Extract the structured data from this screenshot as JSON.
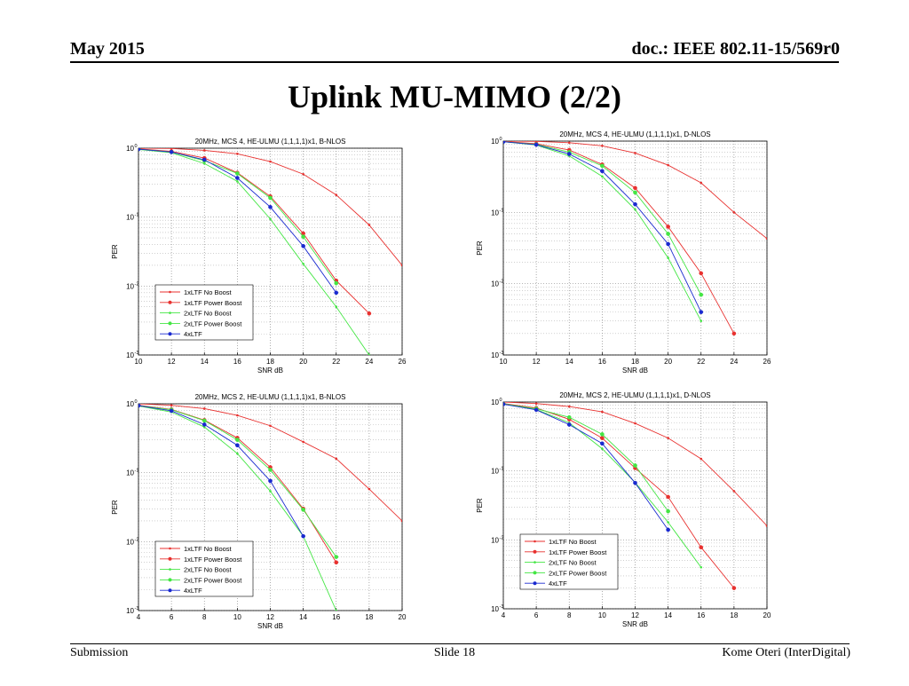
{
  "header": {
    "date": "May 2015",
    "doc": "doc.: IEEE 802.11-15/569r0"
  },
  "title": "Uplink MU-MIMO (2/2)",
  "footer": {
    "left": "Submission",
    "center": "Slide 18",
    "right": "Kome Oteri (InterDigital)"
  },
  "series_colors": {
    "1xLTF No Boost": "#e8312f",
    "1xLTF Power Boost": "#e8312f",
    "2xLTF No Boost": "#44e644",
    "2xLTF Power Boost": "#44e644",
    "4xLTF": "#1a2ad0"
  },
  "chart_data": [
    {
      "type": "line",
      "title": "20MHz, MCS 4, HE-ULMU (1,1,1,1)x1, B-NLOS",
      "xlabel": "SNR dB",
      "ylabel": "PER",
      "xlim": [
        10,
        26
      ],
      "ylim": [
        0.001,
        1
      ],
      "yscale": "log",
      "xticks": [
        "10",
        "12",
        "14",
        "16",
        "18",
        "20",
        "22",
        "24",
        "26"
      ],
      "yticks": [
        "10",
        "10",
        "10",
        "10"
      ],
      "ytick_exps": [
        "0",
        "-1",
        "-2",
        "-3"
      ],
      "grid": true,
      "legend": "bottom-left",
      "series": [
        {
          "name": "1xLTF No Boost",
          "x": [
            10,
            12,
            14,
            16,
            18,
            20,
            22,
            24,
            26
          ],
          "y": [
            1.0,
            0.99,
            0.93,
            0.83,
            0.64,
            0.42,
            0.21,
            0.077,
            0.02
          ]
        },
        {
          "name": "1xLTF Power Boost",
          "x": [
            10,
            12,
            14,
            16,
            18,
            20,
            22,
            24
          ],
          "y": [
            0.98,
            0.9,
            0.72,
            0.44,
            0.2,
            0.058,
            0.012,
            0.004
          ]
        },
        {
          "name": "2xLTF No Boost",
          "x": [
            10,
            12,
            14,
            16,
            18,
            20,
            22,
            24
          ],
          "y": [
            0.96,
            0.86,
            0.6,
            0.33,
            0.094,
            0.021,
            0.005,
            0.001
          ]
        },
        {
          "name": "2xLTF Power Boost",
          "x": [
            10,
            12,
            14,
            16,
            18,
            20,
            22
          ],
          "y": [
            0.97,
            0.88,
            0.66,
            0.43,
            0.19,
            0.052,
            0.011
          ]
        },
        {
          "name": "4xLTF",
          "x": [
            10,
            12,
            14,
            16,
            18,
            20,
            22
          ],
          "y": [
            0.97,
            0.88,
            0.68,
            0.37,
            0.14,
            0.038,
            0.008
          ]
        }
      ]
    },
    {
      "type": "line",
      "title": "20MHz, MCS 4, HE-ULMU (1,1,1,1)x1, D-NLOS",
      "xlabel": "SNR dB",
      "ylabel": "PER",
      "xlim": [
        10,
        26
      ],
      "ylim": [
        0.001,
        1
      ],
      "yscale": "log",
      "xticks": [
        "10",
        "12",
        "14",
        "16",
        "18",
        "20",
        "22",
        "24",
        "26"
      ],
      "yticks": [
        "10",
        "10",
        "10",
        "10"
      ],
      "ytick_exps": [
        "0",
        "-1",
        "-2",
        "-3"
      ],
      "grid": true,
      "legend": "none",
      "series": [
        {
          "name": "1xLTF No Boost",
          "x": [
            10,
            12,
            14,
            16,
            18,
            20,
            22,
            24,
            26
          ],
          "y": [
            1.0,
            0.99,
            0.95,
            0.86,
            0.68,
            0.46,
            0.26,
            0.1,
            0.043
          ]
        },
        {
          "name": "1xLTF Power Boost",
          "x": [
            10,
            12,
            14,
            16,
            18,
            20,
            22,
            24
          ],
          "y": [
            0.99,
            0.92,
            0.75,
            0.47,
            0.22,
            0.063,
            0.014,
            0.002
          ]
        },
        {
          "name": "2xLTF No Boost",
          "x": [
            10,
            12,
            14,
            16,
            18,
            20,
            22
          ],
          "y": [
            0.98,
            0.88,
            0.62,
            0.32,
            0.11,
            0.023,
            0.003
          ]
        },
        {
          "name": "2xLTF Power Boost",
          "x": [
            10,
            12,
            14,
            16,
            18,
            20,
            22
          ],
          "y": [
            0.98,
            0.9,
            0.7,
            0.45,
            0.19,
            0.05,
            0.007
          ]
        },
        {
          "name": "4xLTF",
          "x": [
            10,
            12,
            14,
            16,
            18,
            20,
            22
          ],
          "y": [
            0.98,
            0.89,
            0.66,
            0.38,
            0.13,
            0.036,
            0.004
          ]
        }
      ]
    },
    {
      "type": "line",
      "title": "20MHz, MCS 2, HE-ULMU (1,1,1,1)x1, B-NLOS",
      "xlabel": "SNR dB",
      "ylabel": "PER",
      "xlim": [
        4,
        20
      ],
      "ylim": [
        0.001,
        1
      ],
      "yscale": "log",
      "xticks": [
        "4",
        "6",
        "8",
        "10",
        "12",
        "14",
        "16",
        "18",
        "20"
      ],
      "yticks": [
        "10",
        "10",
        "10",
        "10"
      ],
      "ytick_exps": [
        "0",
        "-1",
        "-2",
        "-3"
      ],
      "grid": true,
      "legend": "bottom-left",
      "series": [
        {
          "name": "1xLTF No Boost",
          "x": [
            4,
            6,
            8,
            10,
            12,
            14,
            16,
            18,
            20
          ],
          "y": [
            1.0,
            0.95,
            0.85,
            0.68,
            0.48,
            0.28,
            0.16,
            0.058,
            0.02
          ]
        },
        {
          "name": "1xLTF Power Boost",
          "x": [
            4,
            6,
            8,
            10,
            12,
            14,
            16
          ],
          "y": [
            0.95,
            0.83,
            0.58,
            0.32,
            0.12,
            0.03,
            0.005
          ]
        },
        {
          "name": "2xLTF No Boost",
          "x": [
            4,
            6,
            8,
            10,
            12,
            14,
            16
          ],
          "y": [
            0.93,
            0.76,
            0.46,
            0.19,
            0.054,
            0.012,
            0.001
          ]
        },
        {
          "name": "2xLTF Power Boost",
          "x": [
            4,
            6,
            8,
            10,
            12,
            14,
            16
          ],
          "y": [
            0.94,
            0.82,
            0.57,
            0.3,
            0.11,
            0.029,
            0.006
          ]
        },
        {
          "name": "4xLTF",
          "x": [
            4,
            6,
            8,
            10,
            12,
            14
          ],
          "y": [
            0.94,
            0.79,
            0.5,
            0.25,
            0.076,
            0.012
          ]
        }
      ]
    },
    {
      "type": "line",
      "title": "20MHz, MCS 2, HE-ULMU (1,1,1,1)x1, D-NLOS",
      "xlabel": "SNR dB",
      "ylabel": "PER",
      "xlim": [
        4,
        20
      ],
      "ylim": [
        0.001,
        1
      ],
      "yscale": "log",
      "xticks": [
        "4",
        "6",
        "8",
        "10",
        "12",
        "14",
        "16",
        "18",
        "20"
      ],
      "yticks": [
        "10",
        "10",
        "10",
        "10"
      ],
      "ytick_exps": [
        "0",
        "-1",
        "-2",
        "-3"
      ],
      "grid": true,
      "legend": "bottom-left",
      "series": [
        {
          "name": "1xLTF No Boost",
          "x": [
            4,
            6,
            8,
            10,
            12,
            14,
            16,
            18,
            20
          ],
          "y": [
            1.0,
            0.95,
            0.86,
            0.72,
            0.49,
            0.3,
            0.15,
            0.051,
            0.016
          ]
        },
        {
          "name": "1xLTF Power Boost",
          "x": [
            4,
            6,
            8,
            10,
            12,
            14,
            16,
            18
          ],
          "y": [
            0.95,
            0.82,
            0.56,
            0.3,
            0.11,
            0.042,
            0.0078,
            0.002
          ]
        },
        {
          "name": "2xLTF No Boost",
          "x": [
            4,
            6,
            8,
            10,
            12,
            14,
            16
          ],
          "y": [
            0.93,
            0.78,
            0.5,
            0.21,
            0.068,
            0.018,
            0.004
          ]
        },
        {
          "name": "2xLTF Power Boost",
          "x": [
            4,
            6,
            8,
            10,
            12,
            14
          ],
          "y": [
            0.94,
            0.8,
            0.6,
            0.34,
            0.12,
            0.026
          ]
        },
        {
          "name": "4xLTF",
          "x": [
            4,
            6,
            8,
            10,
            12,
            14
          ],
          "y": [
            0.93,
            0.77,
            0.47,
            0.25,
            0.067,
            0.014
          ]
        }
      ]
    }
  ]
}
